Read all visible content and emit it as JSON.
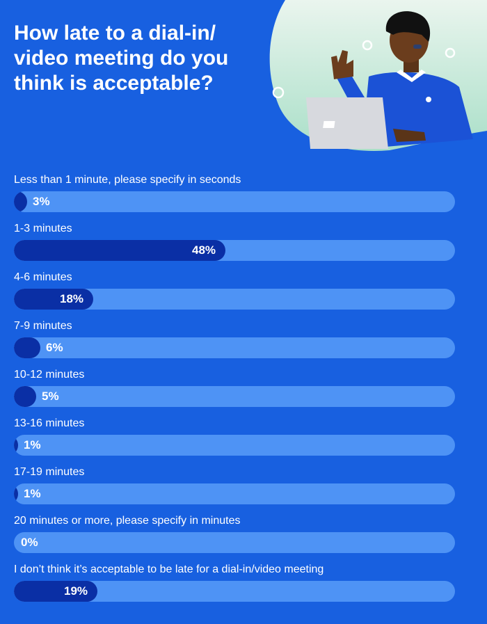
{
  "chart_data": {
    "type": "bar",
    "orientation": "horizontal",
    "title": "How late to a dial-in/ video meeting do you think is acceptable?",
    "categories": [
      "Less than 1 minute, please specify in seconds",
      "1-3 minutes",
      "4-6 minutes",
      "7-9 minutes",
      "10-12 minutes",
      "13-16 minutes",
      "17-19 minutes",
      "20 minutes or more, please specify in minutes",
      "I don’t think it’s acceptable to be late for a dial-in/video meeting"
    ],
    "values": [
      3,
      48,
      18,
      6,
      5,
      1,
      1,
      0,
      19
    ],
    "value_labels": [
      "3%",
      "48%",
      "18%",
      "6%",
      "5%",
      "1%",
      "1%",
      "0%",
      "19%"
    ],
    "xlim": [
      0,
      100
    ],
    "colors": {
      "background": "#1860e0",
      "track": "#4e93f5",
      "fill": "#0a2fa5"
    }
  },
  "illustration": {
    "name": "person-with-headset-laptop-illustration"
  }
}
